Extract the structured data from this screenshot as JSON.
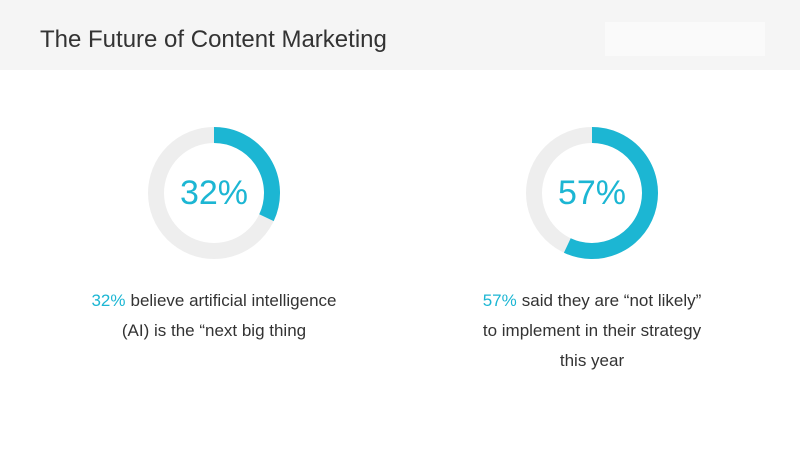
{
  "header": {
    "title": "The Future of Content Marketing"
  },
  "chart_data": [
    {
      "type": "donut",
      "values": [
        32
      ],
      "value_labels": [
        "32%"
      ],
      "color": "#1cb6d3",
      "track_color": "#eeeeee",
      "caption_lines": [
        "believe artificial intelligence",
        "(AI) is the “next big thing"
      ]
    },
    {
      "type": "donut",
      "values": [
        57
      ],
      "value_labels": [
        "57%"
      ],
      "color": "#1cb6d3",
      "track_color": "#eeeeee",
      "caption_lines": [
        "said they are “not likely”",
        "to implement in their strategy",
        "this year"
      ]
    }
  ]
}
